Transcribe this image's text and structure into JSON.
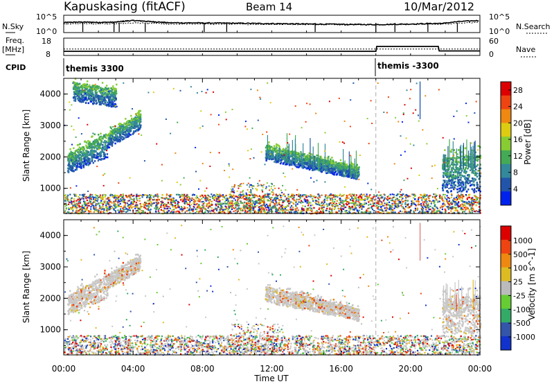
{
  "header": {
    "station": "Kapuskasing (fitACF)",
    "beam": "Beam 14",
    "date": "10/Mar/2012"
  },
  "labels": {
    "nsky": "N.Sky",
    "nsearch": "N.Search",
    "freq": "Freq.",
    "freq_unit": "[MHz]",
    "nave": "Nave",
    "cpid": "CPID",
    "cpid_1": "themis 3300",
    "cpid_2": "themis -3300",
    "noise_left_top": "10^5",
    "noise_left_bottom": "10^0",
    "noise_right_top": "10^5",
    "noise_right_bottom": "10^0",
    "freq_tick_top": "18",
    "freq_tick_bottom": "8",
    "nave_tick_top": "60",
    "nave_tick_bottom": "0"
  },
  "colors": {
    "power_scale": [
      "#0022ee",
      "#2255aa",
      "#33889a",
      "#44aa55",
      "#88cc33",
      "#ddcc11",
      "#ee8811",
      "#ee4411",
      "#dd0000"
    ],
    "velocity_scale": [
      "#1133cc",
      "#3355aa",
      "#33aa66",
      "#66cc33",
      "#bbbbbb",
      "#ddbb22",
      "#ee8811",
      "#ee4411",
      "#dd0000"
    ],
    "gray_scatter": "#c8c8c8"
  },
  "chart_data": [
    {
      "type": "line",
      "name": "noise",
      "x": [
        0,
        1,
        2,
        3,
        4,
        5,
        6,
        8,
        10,
        12,
        14,
        16,
        18,
        20,
        22,
        24
      ],
      "series": [
        {
          "name": "N.Sky",
          "values": [
            800,
            1100,
            900,
            1000,
            3000,
            1500,
            700,
            600,
            500,
            400,
            300,
            250,
            200,
            300,
            500,
            3000
          ]
        },
        {
          "name": "N.Search",
          "values": [
            300,
            400,
            350,
            400,
            600,
            500,
            300,
            280,
            260,
            240,
            220,
            200,
            180,
            220,
            300,
            900
          ]
        }
      ]
    },
    {
      "type": "line",
      "name": "freq-nave",
      "x": [
        0,
        4,
        8,
        12,
        16,
        18,
        18.05,
        21.6,
        21.65,
        24
      ],
      "series": [
        {
          "name": "Freq.",
          "values": [
            10.4,
            10.4,
            10.4,
            10.4,
            10.4,
            10.4,
            13.2,
            13.2,
            10.6,
            10.6
          ]
        },
        {
          "name": "Nave",
          "values": [
            22,
            22,
            22,
            22,
            22,
            22,
            22,
            22,
            22,
            22
          ]
        }
      ]
    },
    {
      "type": "heatmap",
      "title": "",
      "xlabel": "Time UT",
      "ylabel": "Slant Range [km]",
      "xlim": [
        0,
        24
      ],
      "ylim": [
        200,
        4500
      ],
      "x_ticks": [
        "00:00",
        "04:00",
        "08:00",
        "12:00",
        "16:00",
        "20:00",
        "00:00"
      ],
      "y_ticks": [
        1000,
        2000,
        3000,
        4000
      ],
      "colorbar": {
        "label": "Power [dB]",
        "ticks": [
          4,
          8,
          12,
          16,
          20,
          24,
          28
        ],
        "range": [
          0,
          30
        ]
      },
      "bands": [
        {
          "t0": 0.2,
          "t1": 2.5,
          "r0": 1500,
          "r1": 2100,
          "r0_end": 2000,
          "r1_end": 2800,
          "power": 8
        },
        {
          "t0": 2.5,
          "t1": 4.4,
          "r0": 2300,
          "r1": 2800,
          "r0_end": 2900,
          "r1_end": 3400,
          "power": 6
        },
        {
          "t0": 0.5,
          "t1": 3.0,
          "r0": 3800,
          "r1": 4400,
          "r0_end": 3600,
          "r1_end": 4200,
          "power": 3
        },
        {
          "t0": 11.6,
          "t1": 17.0,
          "r0": 1900,
          "r1": 2400,
          "r0_end": 1300,
          "r1_end": 1700,
          "power": 8
        },
        {
          "t0": 21.8,
          "t1": 24.0,
          "r0": 900,
          "r1": 2000,
          "r0_end": 900,
          "r1_end": 2100,
          "power": 10
        }
      ]
    },
    {
      "type": "heatmap",
      "title": "",
      "xlabel": "Time UT",
      "ylabel": "Slant Range [km]",
      "xlim": [
        0,
        24
      ],
      "ylim": [
        200,
        4500
      ],
      "x_ticks": [
        "00:00",
        "04:00",
        "08:00",
        "12:00",
        "16:00",
        "20:00",
        "00:00"
      ],
      "y_ticks": [
        1000,
        2000,
        3000,
        4000
      ],
      "colorbar": {
        "label": "Velocity [m s^-1]",
        "ticks": [
          1000,
          500,
          100,
          25,
          -25,
          -100,
          -500,
          -1000
        ]
      },
      "bands": [
        {
          "t0": 0.2,
          "t1": 2.5,
          "r0": 1500,
          "r1": 2100,
          "r0_end": 2000,
          "r1_end": 2800,
          "velocity": 0
        },
        {
          "t0": 2.5,
          "t1": 4.4,
          "r0": 2300,
          "r1": 2800,
          "r0_end": 2900,
          "r1_end": 3400,
          "velocity": 0
        },
        {
          "t0": 11.6,
          "t1": 17.0,
          "r0": 1900,
          "r1": 2400,
          "r0_end": 1300,
          "r1_end": 1700,
          "velocity": -50
        },
        {
          "t0": 21.8,
          "t1": 24.0,
          "r0": 900,
          "r1": 2000,
          "r0_end": 900,
          "r1_end": 2100,
          "velocity": 0
        }
      ]
    }
  ]
}
